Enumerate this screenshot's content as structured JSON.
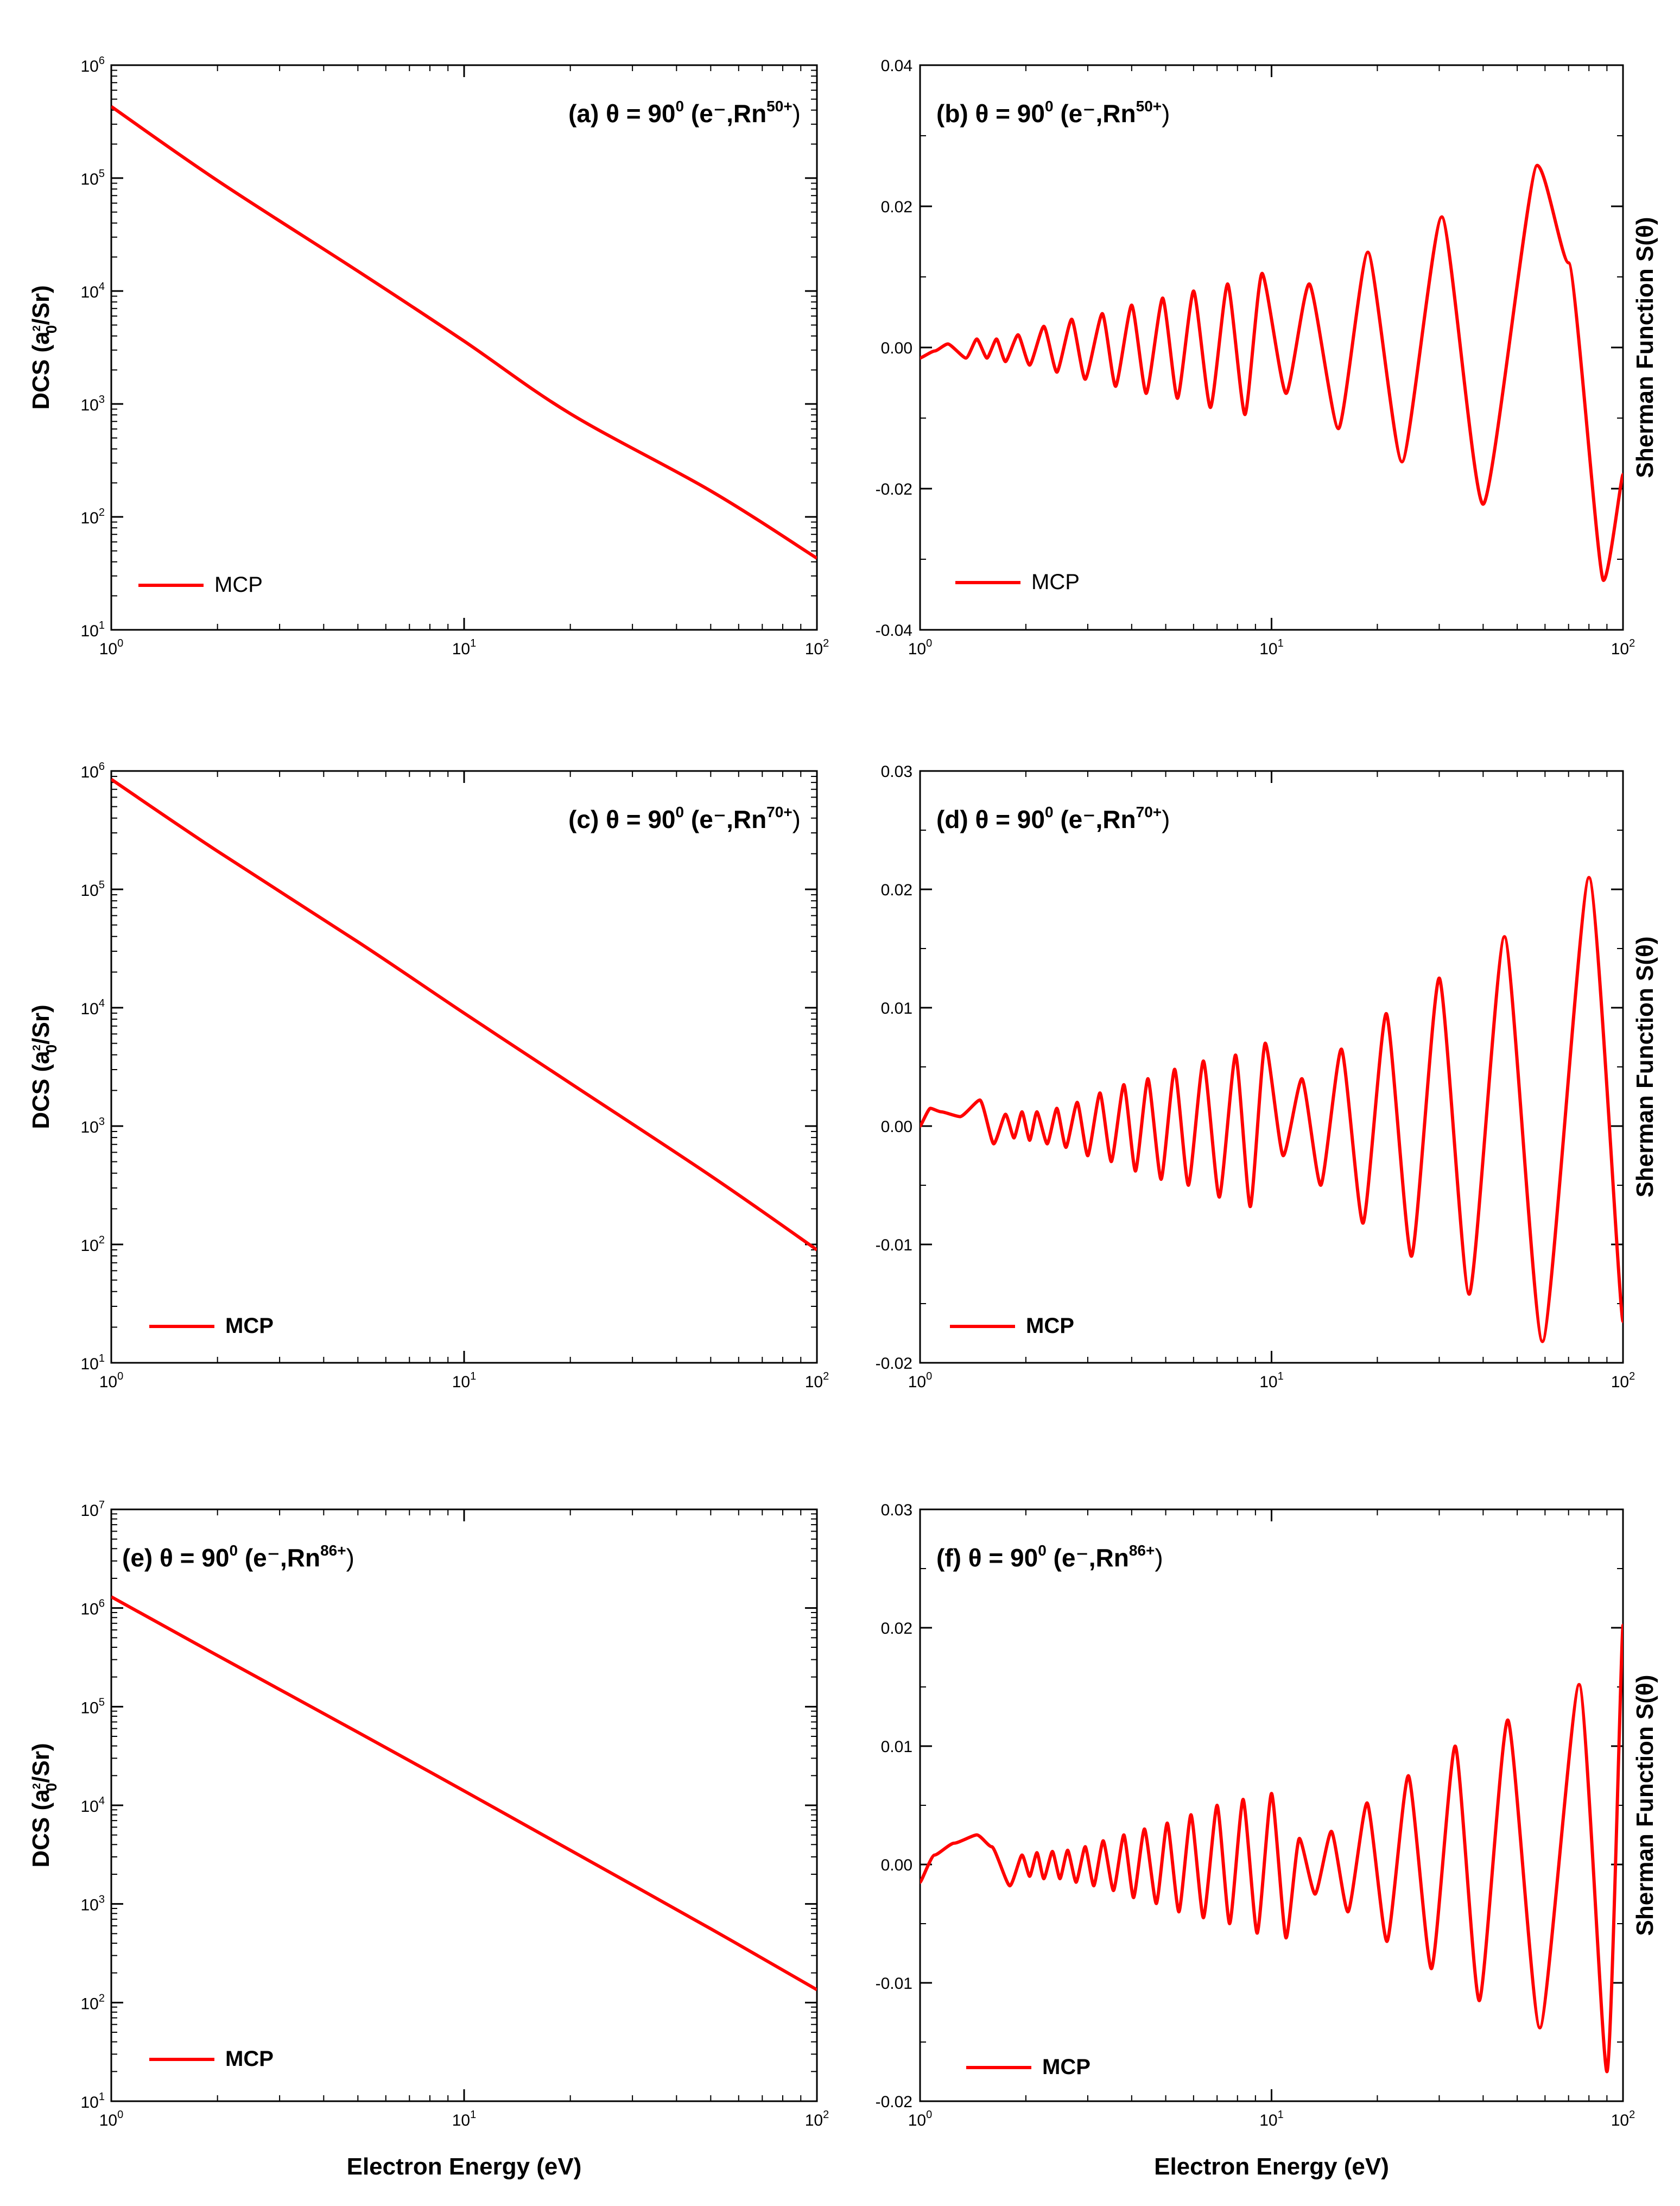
{
  "figure": {
    "x_axis_label": "Electron Energy (eV)",
    "dcs_y_label": "DCS (a0²/Sr)",
    "sherman_y_label": "Sherman Function S(θ)"
  },
  "chart_data": [
    {
      "id": "a",
      "type": "line",
      "yscale": "log",
      "xscale": "log",
      "title_prefix": "(a) θ = 90",
      "title_deg": "0",
      "title_mid": " (e⁻,Rn",
      "title_sup": "50+",
      "title_suffix": ")",
      "ylabel": "DCS (a0²/Sr)",
      "ylabel_main": "DCS (a",
      "ylabel_sub": "0",
      "ylabel_sup": "2",
      "ylabel_rest": "/Sr)",
      "xlabel": "",
      "xlim": [
        1,
        100
      ],
      "ylim_exp": [
        1,
        6
      ],
      "ytick_exps": [
        1,
        2,
        3,
        4,
        5,
        6
      ],
      "xtick_exps": [
        0,
        1,
        2
      ],
      "legend": "MCP",
      "legend_bold": false,
      "series": [
        {
          "name": "MCP",
          "color": "#ff0000",
          "x": [
            1,
            2,
            5,
            10,
            20,
            50,
            100
          ],
          "y": [
            430000,
            95000,
            15000,
            3600,
            820,
            170,
            43
          ]
        }
      ]
    },
    {
      "id": "b",
      "type": "line",
      "xscale": "log",
      "title_prefix": "(b) θ = 90",
      "title_deg": "0",
      "title_mid": " (e⁻,Rn",
      "title_sup": "50+",
      "title_suffix": ")",
      "ylabel": "Sherman Function S(θ)",
      "xlabel": "",
      "xlim": [
        1,
        100
      ],
      "ylim": [
        -0.04,
        0.04
      ],
      "yticks": [
        -0.04,
        -0.02,
        0.0,
        0.02,
        0.04
      ],
      "ytick_labels": [
        "-0.04",
        "-0.02",
        "0.00",
        "0.02",
        "0.04"
      ],
      "xtick_exps": [
        0,
        1,
        2
      ],
      "legend": "MCP",
      "legend_bold": false,
      "series": [
        {
          "name": "MCP",
          "color": "#ff0000",
          "x": [
            1,
            1.1,
            1.2,
            1.35,
            1.45,
            1.55,
            1.65,
            1.75,
            1.9,
            2.05,
            2.25,
            2.45,
            2.7,
            2.95,
            3.3,
            3.6,
            4.0,
            4.4,
            4.9,
            5.4,
            6.0,
            6.7,
            7.5,
            8.4,
            9.4,
            11.0,
            12.8,
            15.5,
            18.8,
            23.5,
            30.5,
            40.0,
            57.0,
            70.0,
            88.0,
            100.0
          ],
          "y": [
            -0.0015,
            -0.0005,
            0.0005,
            -0.0015,
            0.0012,
            -0.0015,
            0.0012,
            -0.002,
            0.0018,
            -0.0025,
            0.003,
            -0.0035,
            0.004,
            -0.0045,
            0.0048,
            -0.0055,
            0.006,
            -0.0065,
            0.007,
            -0.0072,
            0.008,
            -0.0085,
            0.009,
            -0.0095,
            0.0105,
            -0.0065,
            0.009,
            -0.0115,
            0.0135,
            -0.0162,
            0.0185,
            -0.0222,
            0.0258,
            0.012,
            -0.033,
            -0.018
          ]
        }
      ]
    },
    {
      "id": "c",
      "type": "line",
      "yscale": "log",
      "xscale": "log",
      "title_prefix": "(c) θ = 90",
      "title_deg": "0",
      "title_mid": " (e⁻,Rn",
      "title_sup": "70+",
      "title_suffix": ")",
      "ylabel": "DCS (a0²/Sr)",
      "ylabel_main": "DCS (a",
      "ylabel_sub": "0",
      "ylabel_sup": "2",
      "ylabel_rest": "/Sr)",
      "xlabel": "",
      "xlim": [
        1,
        100
      ],
      "ylim_exp": [
        1,
        6
      ],
      "ytick_exps": [
        1,
        2,
        3,
        4,
        5,
        6
      ],
      "xtick_exps": [
        0,
        1,
        2
      ],
      "legend": "MCP",
      "legend_bold": true,
      "series": [
        {
          "name": "MCP",
          "color": "#ff0000",
          "x": [
            1,
            2,
            5,
            10,
            20,
            50,
            100
          ],
          "y": [
            850000,
            210000,
            36000,
            9000,
            2300,
            380,
            90
          ]
        }
      ]
    },
    {
      "id": "d",
      "type": "line",
      "xscale": "log",
      "title_prefix": "(d) θ = 90",
      "title_deg": "0",
      "title_mid": " (e⁻,Rn",
      "title_sup": "70+",
      "title_suffix": ")",
      "ylabel": "Sherman Function S(θ)",
      "xlabel": "",
      "xlim": [
        1,
        100
      ],
      "ylim": [
        -0.02,
        0.03
      ],
      "yticks": [
        -0.02,
        -0.01,
        0.0,
        0.01,
        0.02,
        0.03
      ],
      "ytick_labels": [
        "-0.02",
        "-0.01",
        "0.00",
        "0.01",
        "0.02",
        "0.03"
      ],
      "xtick_exps": [
        0,
        1,
        2
      ],
      "legend": "MCP",
      "legend_bold": true,
      "series": [
        {
          "name": "MCP",
          "color": "#ff0000",
          "x": [
            1,
            1.07,
            1.15,
            1.3,
            1.48,
            1.62,
            1.75,
            1.85,
            1.95,
            2.05,
            2.15,
            2.3,
            2.45,
            2.6,
            2.8,
            3.0,
            3.25,
            3.5,
            3.8,
            4.1,
            4.45,
            4.85,
            5.3,
            5.8,
            6.4,
            7.1,
            7.9,
            8.7,
            9.6,
            10.8,
            12.2,
            13.8,
            15.8,
            18.2,
            21.2,
            25.0,
            30.0,
            36.5,
            46.0,
            59.0,
            80.0,
            100.0
          ],
          "y": [
            0.0,
            0.0015,
            0.0012,
            0.0008,
            0.0022,
            -0.0015,
            0.001,
            -0.001,
            0.0012,
            -0.0012,
            0.0012,
            -0.0015,
            0.0015,
            -0.0018,
            0.002,
            -0.0025,
            0.0028,
            -0.003,
            0.0035,
            -0.0038,
            0.004,
            -0.0045,
            0.0048,
            -0.005,
            0.0055,
            -0.006,
            0.006,
            -0.0068,
            0.007,
            -0.0025,
            0.004,
            -0.005,
            0.0065,
            -0.0082,
            0.0095,
            -0.011,
            0.0125,
            -0.0142,
            0.016,
            -0.0182,
            0.021,
            -0.0165
          ]
        }
      ]
    },
    {
      "id": "e",
      "type": "line",
      "yscale": "log",
      "xscale": "log",
      "title_prefix": "(e) θ = 90",
      "title_deg": "0",
      "title_mid": " (e⁻,Rn",
      "title_sup": "86+",
      "title_suffix": ")",
      "ylabel": "DCS (a0²/Sr)",
      "ylabel_main": "DCS (a",
      "ylabel_sub": "0",
      "ylabel_sup": "2",
      "ylabel_rest": "/Sr)",
      "xlabel": "Electron Energy (eV)",
      "xlim": [
        1,
        100
      ],
      "ylim_exp": [
        1,
        7
      ],
      "ytick_exps": [
        1,
        2,
        3,
        4,
        5,
        6,
        7
      ],
      "xtick_exps": [
        0,
        1,
        2
      ],
      "legend": "MCP",
      "legend_bold": true,
      "series": [
        {
          "name": "MCP",
          "color": "#ff0000",
          "x": [
            1,
            2,
            5,
            10,
            20,
            50,
            100
          ],
          "y": [
            1300000,
            330000,
            55000,
            14000,
            3500,
            560,
            135
          ]
        }
      ]
    },
    {
      "id": "f",
      "type": "line",
      "xscale": "log",
      "title_prefix": "(f) θ = 90",
      "title_deg": "0",
      "title_mid": " (e⁻,Rn",
      "title_sup": "86+",
      "title_suffix": ")",
      "ylabel": "Sherman Function S(θ)",
      "xlabel": "Electron Energy (eV)",
      "xlim": [
        1,
        100
      ],
      "ylim": [
        -0.02,
        0.03
      ],
      "yticks": [
        -0.02,
        -0.01,
        0.0,
        0.01,
        0.02,
        0.03
      ],
      "ytick_labels": [
        "-0.02",
        "-0.01",
        "0.00",
        "0.01",
        "0.02",
        "0.03"
      ],
      "xtick_exps": [
        0,
        1,
        2
      ],
      "legend": "MCP",
      "legend_bold": true,
      "series": [
        {
          "name": "MCP",
          "color": "#ff0000",
          "x": [
            1,
            1.1,
            1.25,
            1.45,
            1.6,
            1.8,
            1.95,
            2.05,
            2.15,
            2.25,
            2.38,
            2.5,
            2.63,
            2.78,
            2.95,
            3.12,
            3.32,
            3.55,
            3.8,
            4.05,
            4.35,
            4.7,
            5.05,
            5.45,
            5.9,
            6.4,
            7.0,
            7.6,
            8.3,
            9.1,
            10.0,
            11.0,
            12.0,
            13.3,
            14.8,
            16.5,
            18.7,
            21.3,
            24.5,
            28.5,
            33.3,
            39.0,
            47.0,
            58.0,
            75.0,
            90.0,
            100.0
          ],
          "y": [
            -0.0015,
            0.0008,
            0.0018,
            0.0025,
            0.0015,
            -0.0018,
            0.0008,
            -0.001,
            0.001,
            -0.0012,
            0.0011,
            -0.0012,
            0.0012,
            -0.0015,
            0.0015,
            -0.0018,
            0.002,
            -0.0022,
            0.0025,
            -0.0028,
            0.003,
            -0.0033,
            0.0035,
            -0.004,
            0.0042,
            -0.0045,
            0.005,
            -0.005,
            0.0055,
            -0.0058,
            0.006,
            -0.0062,
            0.0022,
            -0.0025,
            0.0028,
            -0.004,
            0.0052,
            -0.0065,
            0.0075,
            -0.0088,
            0.01,
            -0.0115,
            0.0122,
            -0.0138,
            0.0152,
            -0.0175,
            0.0202
          ]
        }
      ]
    }
  ]
}
